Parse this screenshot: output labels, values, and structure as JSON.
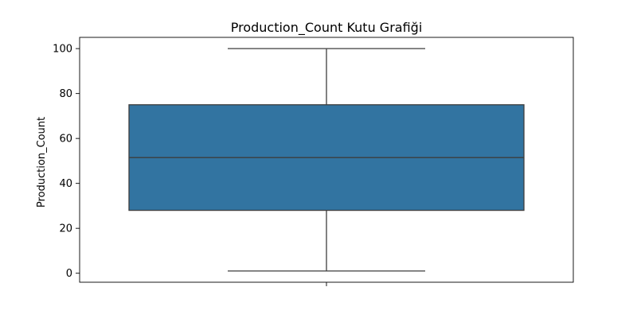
{
  "chart_data": {
    "type": "box",
    "title": "Production_Count Kutu Grafiği",
    "xlabel": "",
    "ylabel": "Production_Count",
    "ylim": [
      -4,
      105
    ],
    "yticks": [
      0,
      20,
      40,
      60,
      80,
      100
    ],
    "grid": false,
    "color": "#3274a1",
    "line_color": "#3d3d3d",
    "box": {
      "min": 1,
      "q1": 28,
      "median": 51.5,
      "q3": 75,
      "max": 100
    }
  }
}
